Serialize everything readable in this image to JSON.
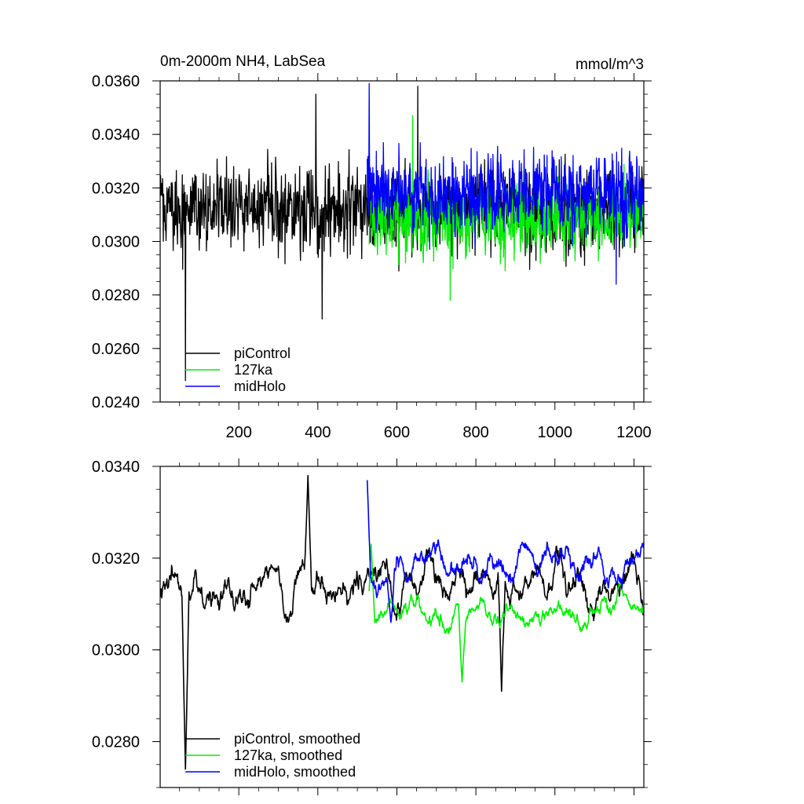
{
  "chart_data": [
    {
      "type": "line",
      "title": "0m-2000m NH4, LabSea",
      "units": "mmol/m^3",
      "xlim": [
        1,
        1225
      ],
      "ylim": [
        0.024,
        0.036
      ],
      "x_ticks": [
        200,
        400,
        600,
        800,
        1000,
        1200
      ],
      "x_tick_labels": [
        "200",
        "400",
        "600",
        "800",
        "1000",
        "1200"
      ],
      "y_ticks": [
        0.024,
        0.026,
        0.028,
        0.03,
        0.032,
        0.034,
        0.036
      ],
      "y_tick_labels": [
        "0.0240",
        "0.0260",
        "0.0280",
        "0.0300",
        "0.0320",
        "0.0340",
        "0.0360"
      ],
      "legend_position": "bottom-left",
      "series": [
        {
          "name": "piControl",
          "color": "#000000",
          "x_start": 1,
          "x_end": 1225,
          "mean": 0.0312,
          "spread": 0.0011,
          "notable": [
            {
              "x": 65,
              "y": 0.0248
            },
            {
              "x": 411,
              "y": 0.0271
            },
            {
              "x": 395,
              "y": 0.0355
            },
            {
              "x": 653,
              "y": 0.0358
            }
          ]
        },
        {
          "name": "127ka",
          "color": "#00ee00",
          "x_start": 530,
          "x_end": 1225,
          "mean": 0.0309,
          "spread": 0.001,
          "notable": [
            {
              "x": 735,
              "y": 0.0278
            },
            {
              "x": 640,
              "y": 0.0347
            }
          ]
        },
        {
          "name": "midHolo",
          "color": "#0000ff",
          "x_start": 525,
          "x_end": 1225,
          "mean": 0.0318,
          "spread": 0.001,
          "notable": [
            {
              "x": 530,
              "y": 0.0359
            },
            {
              "x": 1155,
              "y": 0.0284
            }
          ]
        }
      ]
    },
    {
      "type": "line",
      "title": "",
      "xlim": [
        1,
        1225
      ],
      "ylim": [
        0.027,
        0.034
      ],
      "x_ticks": [
        200,
        400,
        600,
        800,
        1000,
        1200
      ],
      "y_ticks": [
        0.028,
        0.03,
        0.032,
        0.034
      ],
      "y_tick_labels": [
        "0.0280",
        "0.0300",
        "0.0320",
        "0.0340"
      ],
      "legend_position": "bottom-left",
      "series": [
        {
          "name": "piControl, smoothed",
          "color": "#000000",
          "x_start": 1,
          "x_end": 1225,
          "mean": 0.0314,
          "spread": 0.0006,
          "notable": [
            {
              "x": 65,
              "y": 0.0274
            },
            {
              "x": 375,
              "y": 0.0338
            },
            {
              "x": 865,
              "y": 0.0291
            }
          ]
        },
        {
          "name": "127ka, smoothed",
          "color": "#00ee00",
          "x_start": 530,
          "x_end": 1225,
          "mean": 0.0308,
          "spread": 0.0004,
          "notable": [
            {
              "x": 765,
              "y": 0.0293
            },
            {
              "x": 535,
              "y": 0.0323
            }
          ]
        },
        {
          "name": "midHolo, smoothed",
          "color": "#0000ff",
          "x_start": 525,
          "x_end": 1225,
          "mean": 0.0318,
          "spread": 0.0005,
          "notable": [
            {
              "x": 525,
              "y": 0.0337
            },
            {
              "x": 585,
              "y": 0.0306
            }
          ]
        }
      ]
    }
  ]
}
